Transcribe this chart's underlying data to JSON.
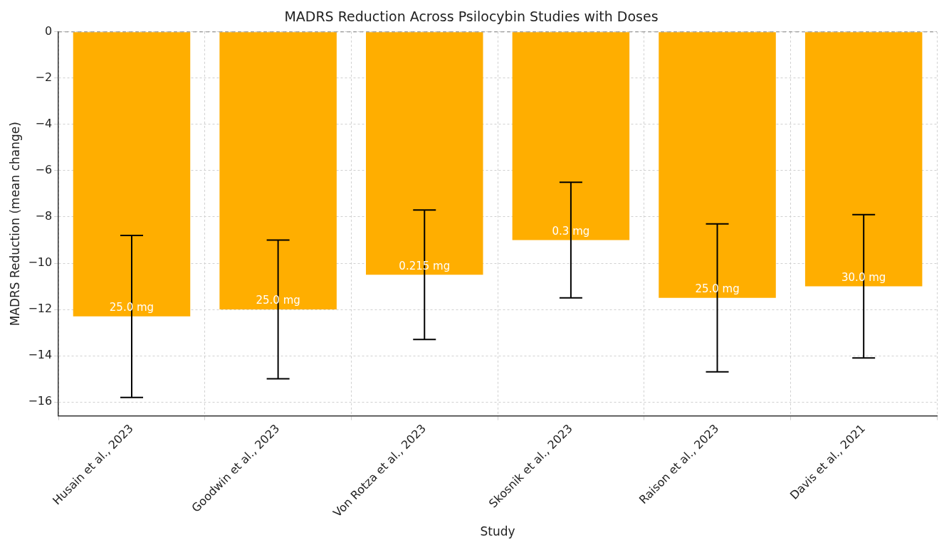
{
  "chart_data": {
    "type": "bar",
    "title": "MADRS Reduction Across Psilocybin Studies with Doses",
    "xlabel": "Study",
    "ylabel": "MADRS Reduction (mean change)",
    "categories": [
      "Husain et al., 2023",
      "Goodwin et al., 2023",
      "Von Rotza et al., 2023",
      "Skosnik et al., 2023",
      "Raison et al., 2023",
      "Davis et al., 2021"
    ],
    "values": [
      -12.3,
      -12,
      -10.5,
      -9,
      -11.5,
      -11
    ],
    "errors": [
      3.5,
      3,
      2.8,
      2.5,
      3.2,
      3.1
    ],
    "color": "#ffae00",
    "ylim": [
      -16.6,
      0
    ],
    "yticks": [
      0,
      -2,
      -4,
      -6,
      -8,
      -10,
      -12,
      -14,
      -16
    ],
    "grid": true,
    "legend": false,
    "ref_lines": [
      {
        "axis": "y",
        "value": 0,
        "color": "#808080",
        "line_style": "dashed"
      }
    ],
    "annotations": [
      {
        "text": "25.0 mg",
        "x": "Husain et al., 2023",
        "y": -12.3
      },
      {
        "text": "25.0 mg",
        "x": "Goodwin et al., 2023",
        "y": -12
      },
      {
        "text": "0.215 mg",
        "x": "Von Rotza et al., 2023",
        "y": -10.5
      },
      {
        "text": "0.3 mg",
        "x": "Skosnik et al., 2023",
        "y": -9
      },
      {
        "text": "25.0 mg",
        "x": "Raison et al., 2023",
        "y": -11.5
      },
      {
        "text": "30.0 mg",
        "x": "Davis et al., 2021",
        "y": -11
      }
    ]
  }
}
